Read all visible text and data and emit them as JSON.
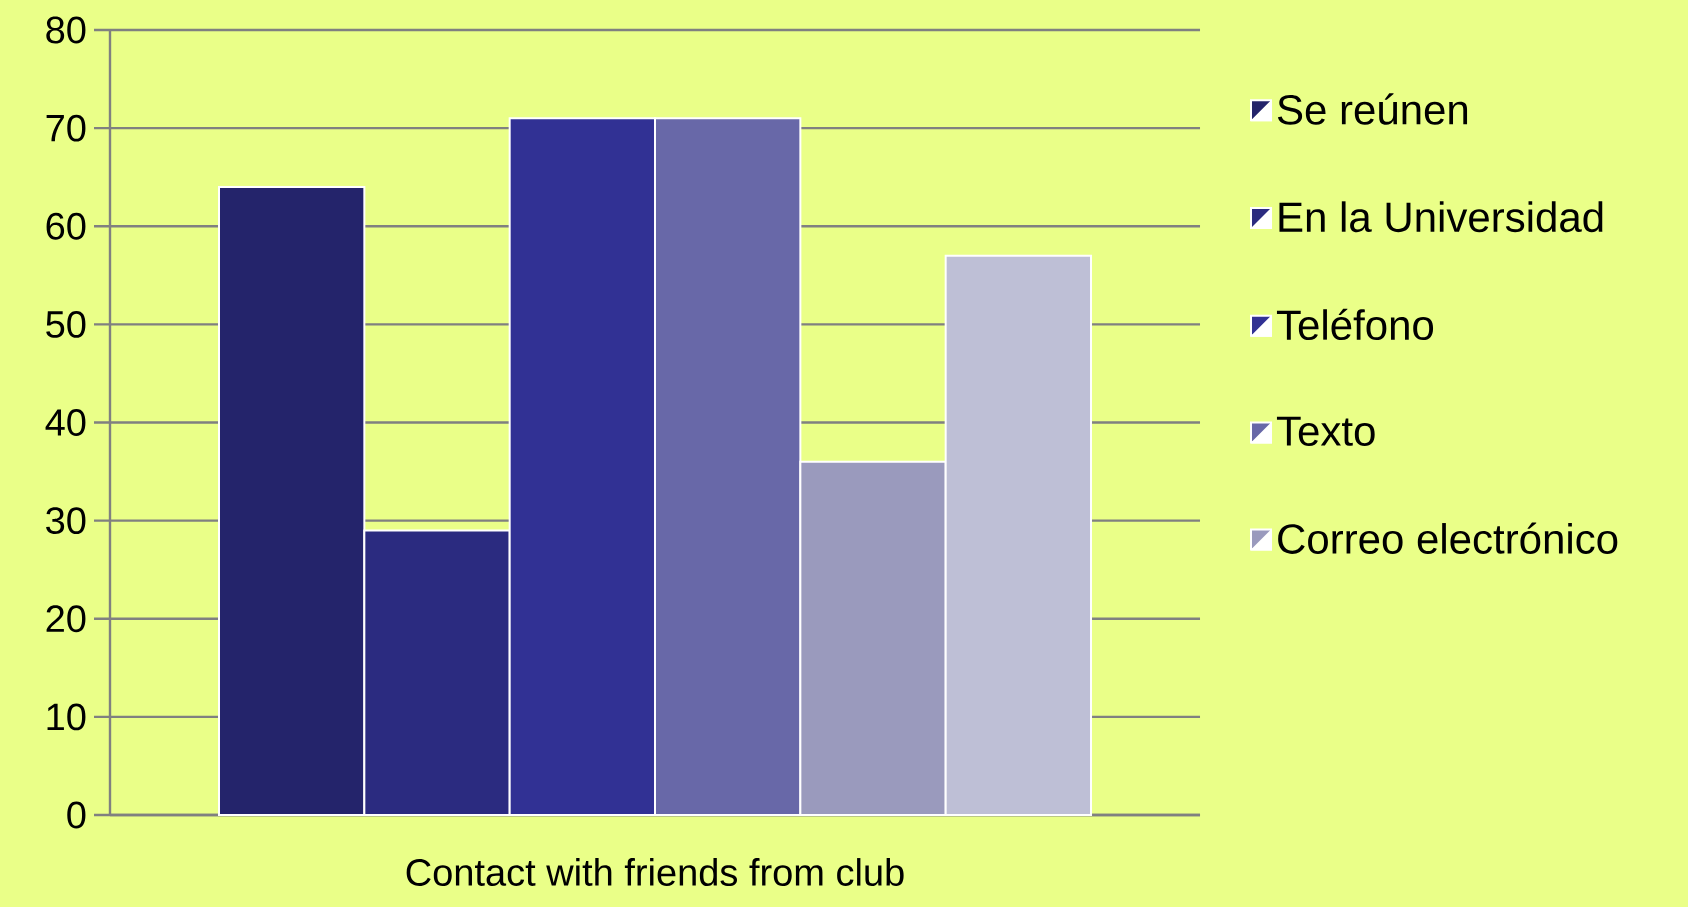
{
  "chart_data": {
    "type": "bar",
    "categories": [
      "Contact with friends from club"
    ],
    "series": [
      {
        "name": "Se reúnen",
        "color": "#24246b",
        "values": [
          64
        ]
      },
      {
        "name": "En la Universidad",
        "color": "#2b2b80",
        "values": [
          29
        ]
      },
      {
        "name": "Teléfono",
        "color": "#313194",
        "values": [
          71
        ]
      },
      {
        "name": "Texto",
        "color": "#6868a8",
        "values": [
          71
        ]
      },
      {
        "name": "Correo electrónico",
        "color": "#9a9abd",
        "values": [
          36
        ]
      },
      {
        "color": "#bebfd6",
        "values": [
          57
        ]
      }
    ],
    "ylim": [
      0,
      80
    ],
    "yticks": [
      0,
      10,
      20,
      30,
      40,
      50,
      60,
      70,
      80
    ],
    "grid": "y",
    "legend": "right"
  }
}
